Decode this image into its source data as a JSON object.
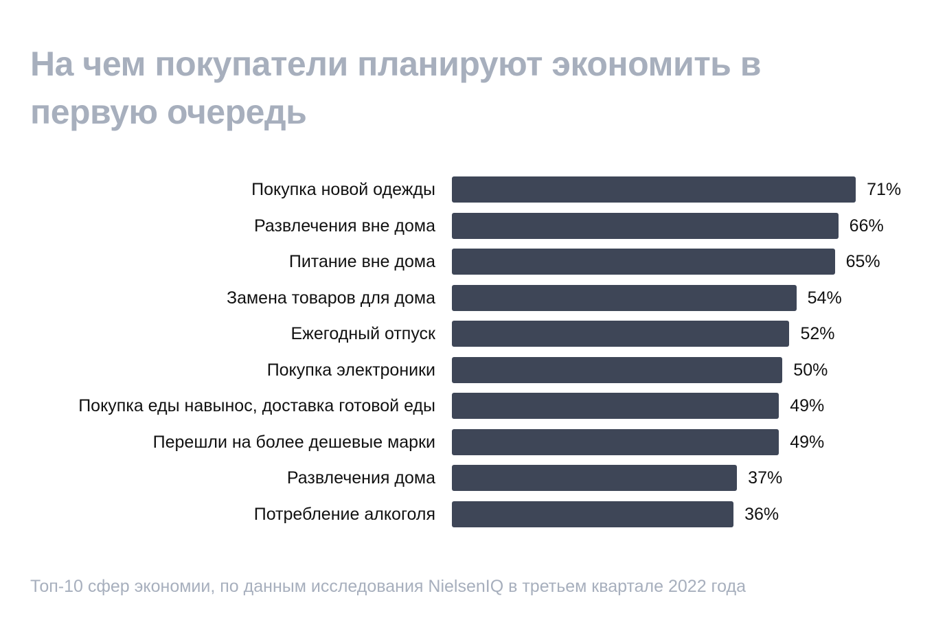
{
  "chart_data": {
    "type": "bar",
    "orientation": "horizontal",
    "title": "На чем покупатели планируют экономить в первую очередь",
    "footnote": "Топ-10 сфер экономии, по данным исследования NielsenIQ в третьем квартале 2022 года",
    "categories": [
      "Покупка новой одежды",
      "Развлечения вне дома",
      "Питание вне дома",
      "Замена товаров для дома",
      "Ежегодный отпуск",
      "Покупка электроники",
      "Покупка еды навынос, доставка готовой еды",
      "Перешли на более дешевые марки",
      "Развлечения дома",
      "Потребление алкоголя"
    ],
    "values": [
      71,
      66,
      65,
      54,
      52,
      50,
      49,
      49,
      37,
      36
    ],
    "value_labels": [
      "71%",
      "66%",
      "65%",
      "54%",
      "52%",
      "50%",
      "49%",
      "49%",
      "37%",
      "36%"
    ],
    "unit": "%",
    "colors": {
      "bar": "#3e4657",
      "title": "#a7afbd"
    }
  }
}
